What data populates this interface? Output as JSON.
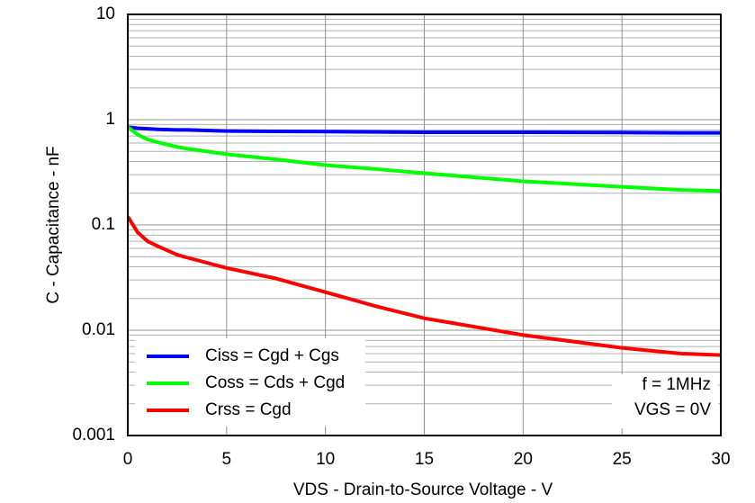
{
  "chart_data": {
    "type": "line",
    "x_label": "VDS - Drain-to-Source Voltage - V",
    "y_label": "C - Capacitance - nF",
    "x": [
      0,
      0.5,
      1,
      1.5,
      2.5,
      3,
      5,
      7.5,
      10,
      12.5,
      15,
      20,
      25,
      28,
      30
    ],
    "series": [
      {
        "name": "Ciss = Cgd + Cgs",
        "color": "#0000ff",
        "values": [
          0.85,
          0.83,
          0.82,
          0.81,
          0.8,
          0.8,
          0.78,
          0.775,
          0.77,
          0.765,
          0.76,
          0.76,
          0.755,
          0.75,
          0.75
        ]
      },
      {
        "name": "Coss = Cds + Cgd",
        "color": "#00ff00",
        "values": [
          0.85,
          0.72,
          0.65,
          0.61,
          0.55,
          0.53,
          0.47,
          0.42,
          0.37,
          0.34,
          0.31,
          0.26,
          0.23,
          0.215,
          0.21
        ]
      },
      {
        "name": "Crss =  Cgd",
        "color": "#ff0000",
        "values": [
          0.12,
          0.085,
          0.07,
          0.063,
          0.052,
          0.049,
          0.039,
          0.031,
          0.023,
          0.017,
          0.013,
          0.009,
          0.0068,
          0.006,
          0.0058
        ]
      }
    ],
    "xlim": [
      0,
      30
    ],
    "xticks": [
      0,
      5,
      10,
      15,
      20,
      25,
      30
    ],
    "ylim": [
      0.001,
      10
    ],
    "yticks": [
      0.001,
      0.01,
      0.1,
      1,
      10
    ],
    "yminorticks": [
      0.002,
      0.003,
      0.004,
      0.005,
      0.006,
      0.007,
      0.008,
      0.009,
      0.02,
      0.03,
      0.04,
      0.05,
      0.06,
      0.07,
      0.08,
      0.09,
      0.2,
      0.3,
      0.4,
      0.5,
      0.6,
      0.7,
      0.8,
      0.9,
      2,
      3,
      4,
      5,
      6,
      7,
      8,
      9
    ],
    "log_y": true,
    "grid": true,
    "legend": "lower left",
    "annotations": [
      "f = 1MHz",
      "VGS = 0V"
    ]
  }
}
